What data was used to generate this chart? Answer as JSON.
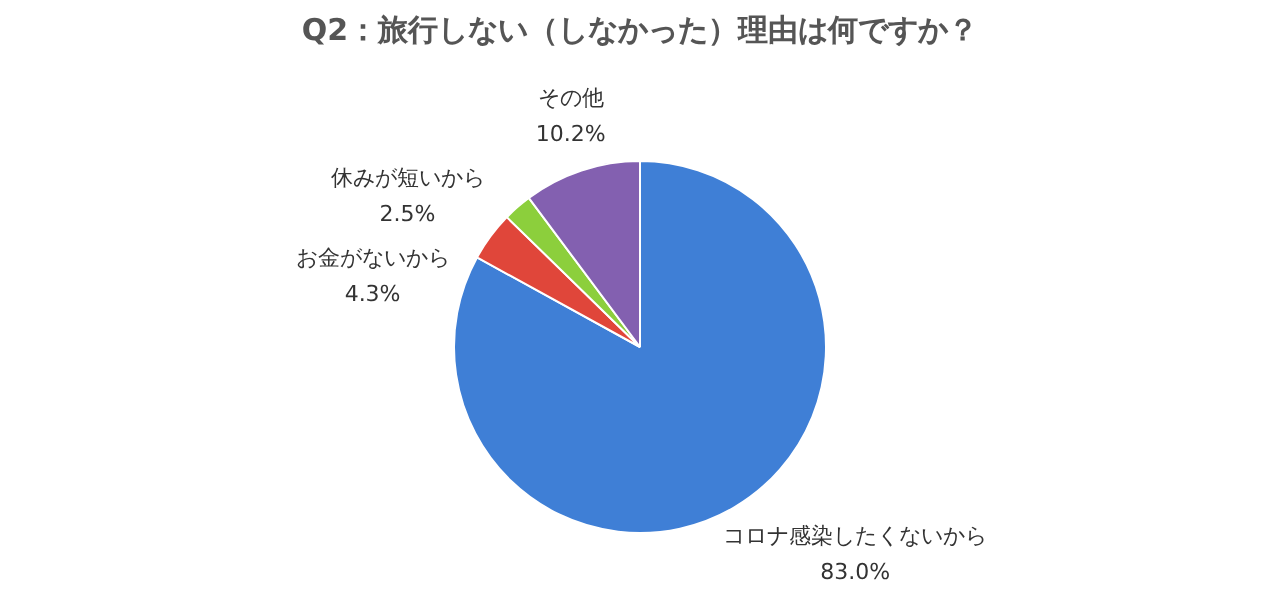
{
  "chart_data": {
    "type": "pie",
    "title": "Q2：旅行しない（しなかった）理由は何ですか？",
    "categories": [
      "コロナ感染したくないから",
      "お金がないから",
      "休みが短いから",
      "その他"
    ],
    "values": [
      83.0,
      4.3,
      2.5,
      10.2
    ],
    "value_labels": [
      "83.0%",
      "4.3%",
      "2.5%",
      "10.2%"
    ],
    "colors": [
      "#3f7fd6",
      "#e0463a",
      "#8ccf3c",
      "#8360b0"
    ],
    "legend": false
  }
}
